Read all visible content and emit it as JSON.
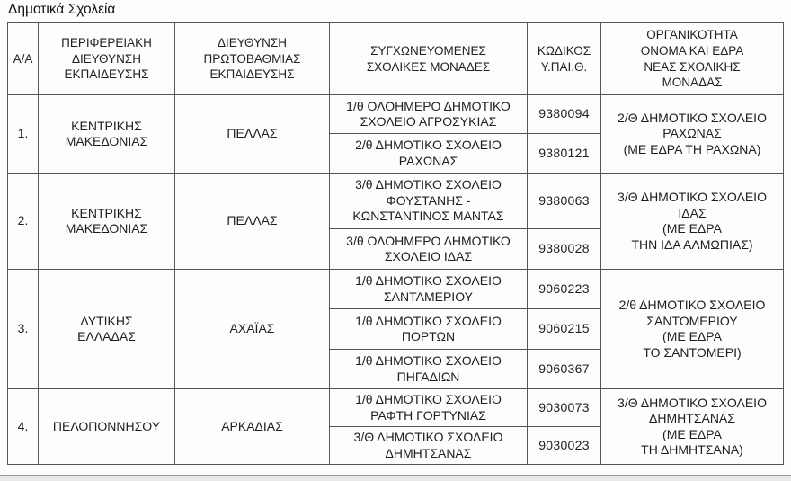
{
  "title": "Δημοτικά Σχολεία",
  "colors": {
    "border": "#565656",
    "text": "#1e1e1e",
    "bottom_bar": "#e9e9e9"
  },
  "table": {
    "headers": [
      "Α/Α",
      "ΠΕΡΙΦΕΡΕΙΑΚΗ\nΔΙΕΥΘΥΝΣΗ\nΕΚΠΑΙΔΕΥΣΗΣ",
      "ΔΙΕΥΘΥΝΣΗ\nΠΡΩΤΟΒΑΘΜΙΑΣ\nΕΚΠΑΙΔΕΥΣΗΣ",
      "ΣΥΓΧΩΝΕΥΟΜΕΝΕΣ\nΣΧΟΛΙΚΕΣ ΜΟΝΑΔΕΣ",
      "ΚΩΔΙΚΟΣ\nΥ.ΠΑΙ.Θ.",
      "ΟΡΓΑΝΙΚΟΤΗΤΑ\nΟΝΟΜΑ ΚΑΙ ΕΔΡΑ\nΝΕΑΣ ΣΧΟΛΙΚΗΣ\nΜΟΝΑΔΑΣ"
    ],
    "groups": [
      {
        "num": "1.",
        "region": "ΚΕΝΤΡΙΚΗΣ\nΜΑΚΕΔΟΝΙΑΣ",
        "directorate": "ΠΕΛΛΑΣ",
        "schools": [
          {
            "name": "1/θ ΟΛΟΗΜΕΡΟ ΔΗΜΟΤΙΚΟ\nΣΧΟΛΕΙΟ ΑΓΡΟΣΥΚΙΑΣ",
            "code": "9380094"
          },
          {
            "name": "2/θ ΔΗΜΟΤΙΚΟ ΣΧΟΛΕΙΟ\nΡΑΧΩΝΑΣ",
            "code": "9380121"
          }
        ],
        "new_unit": "2/Θ ΔΗΜΟΤΙΚΟ ΣΧΟΛΕΙΟ\nΡΑΧΩΝΑΣ\n(ΜΕ ΕΔΡΑ ΤΗ ΡΑΧΩΝΑ)"
      },
      {
        "num": "2.",
        "region": "ΚΕΝΤΡΙΚΗΣ\nΜΑΚΕΔΟΝΙΑΣ",
        "directorate": "ΠΕΛΛΑΣ",
        "schools": [
          {
            "name": "3/θ ΔΗΜΟΤΙΚΟ ΣΧΟΛΕΙΟ\nΦΟΥΣΤΑΝΗΣ -\nΚΩΝΣΤΑΝΤΙΝΟΣ ΜΑΝΤΑΣ",
            "code": "9380063"
          },
          {
            "name": "3/θ ΟΛΟΗΜΕΡΟ ΔΗΜΟΤΙΚΟ\nΣΧΟΛΕΙΟ ΙΔΑΣ",
            "code": "9380028"
          }
        ],
        "new_unit": "3/Θ ΔΗΜΟΤΙΚΟ ΣΧΟΛΕΙΟ\nΙΔΑΣ\n(ΜΕ ΕΔΡΑ\nΤΗΝ ΙΔΑ ΑΛΜΩΠΙΑΣ)"
      },
      {
        "num": "3.",
        "region": "ΔΥΤΙΚΗΣ\nΕΛΛΑΔΑΣ",
        "directorate": "ΑΧΑΪΑΣ",
        "schools": [
          {
            "name": "1/θ ΔΗΜΟΤΙΚΟ ΣΧΟΛΕΙΟ\nΣΑΝΤΑΜΕΡΙΟΥ",
            "code": "9060223"
          },
          {
            "name": "1/θ ΔΗΜΟΤΙΚΟ ΣΧΟΛΕΙΟ\nΠΟΡΤΩΝ",
            "code": "9060215"
          },
          {
            "name": "1/θ ΔΗΜΟΤΙΚΟ ΣΧΟΛΕΙΟ\nΠΗΓΑΔΙΩΝ",
            "code": "9060367"
          }
        ],
        "new_unit": "2/θ ΔΗΜΟΤΙΚΟ ΣΧΟΛΕΙΟ\nΣΑΝΤΟΜΕΡΙΟΥ\n(ΜΕ ΕΔΡΑ\nΤΟ ΣΑΝΤΟΜΕΡΙ)"
      },
      {
        "num": "4.",
        "region": "ΠΕΛΟΠΟΝΝΗΣΟΥ",
        "directorate": "ΑΡΚΑΔΙΑΣ",
        "schools": [
          {
            "name": "1/θ ΔΗΜΟΤΙΚΟ ΣΧΟΛΕΙΟ\nΡΑΦΤΗ ΓΟΡΤΥΝΙΑΣ",
            "code": "9030073"
          },
          {
            "name": "3/Θ ΔΗΜΟΤΙΚΟ ΣΧΟΛΕΙΟ\nΔΗΜΗΤΣΑΝΑΣ",
            "code": "9030023"
          }
        ],
        "new_unit": "3/Θ ΔΗΜΟΤΙΚΟ ΣΧΟΛΕΙΟ\nΔΗΜΗΤΣΑΝΑΣ\n(ΜΕ ΕΔΡΑ\nΤΗ ΔΗΜΗΤΣΑΝΑ)"
      }
    ]
  }
}
